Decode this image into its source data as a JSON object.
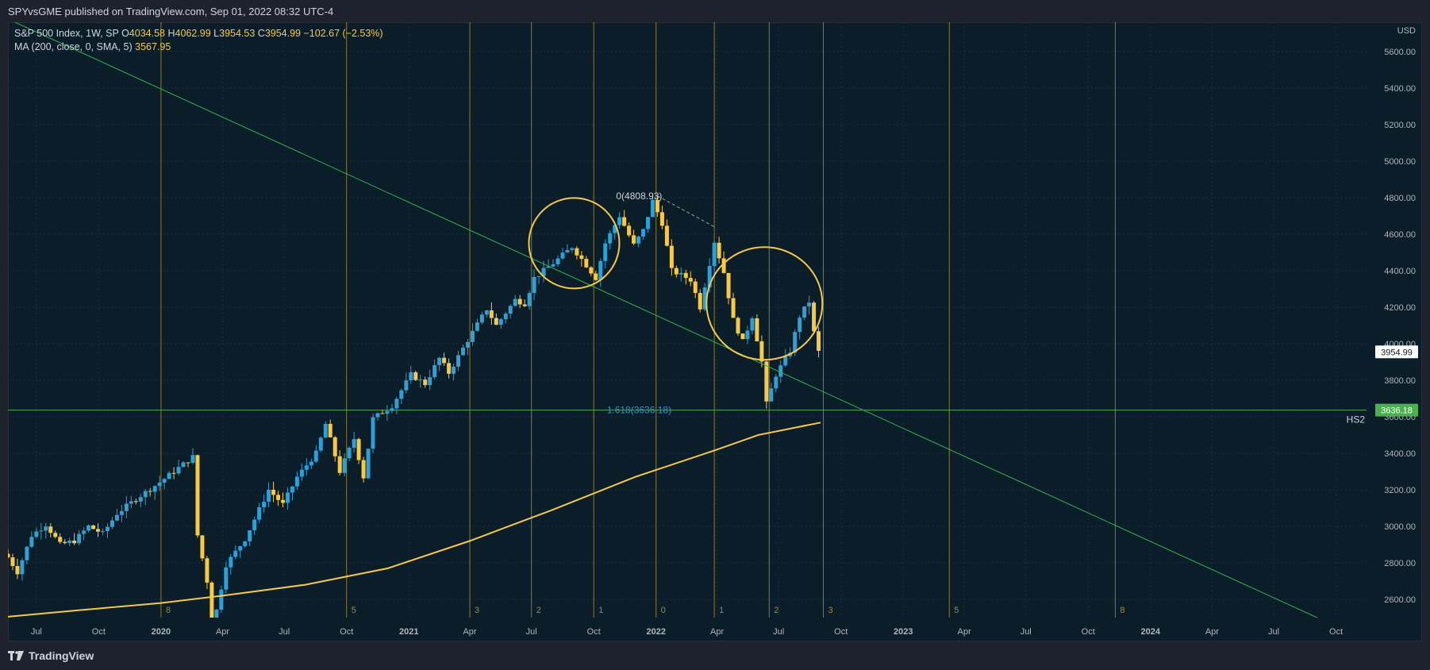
{
  "header": {
    "publish_line": "SPYvsGME published on TradingView.com, Sep 01, 2022 08:32 UTC-4"
  },
  "legend": {
    "symbol": "S&P 500 Index, 1W, SP",
    "open_label": "O",
    "open": "4034.58",
    "high_label": "H",
    "high": "4062.99",
    "low_label": "L",
    "low": "3954.53",
    "close_label": "C",
    "close": "3954.99",
    "change": "−102.67 (−2.53%)",
    "ma_label": "MA (200, close, 0, SMA, 5)",
    "ma_value": "3567.95"
  },
  "footer": {
    "brand": "TradingView"
  },
  "colors": {
    "up": "#2ea0d6",
    "down": "#f7c948",
    "ma": "#f7c948",
    "trend": "#36b24a",
    "hline": "#4caf50",
    "vline": "#8c7a2e",
    "grid": "#1b3040"
  },
  "chart_data": {
    "type": "candlestick",
    "currency": "USD",
    "y_ticks": [
      2600,
      2800,
      3000,
      3200,
      3400,
      3600,
      3800,
      4000,
      4200,
      4400,
      4600,
      4800,
      5000,
      5200,
      5400,
      5600
    ],
    "ylim": [
      2500,
      5760
    ],
    "x_range": [
      "2019-05-20",
      "2024-11-15"
    ],
    "x_ticks": [
      {
        "date": "2019-07-01",
        "label": "Jul",
        "bold": false
      },
      {
        "date": "2019-10-01",
        "label": "Oct",
        "bold": false
      },
      {
        "date": "2020-01-01",
        "label": "2020",
        "bold": true
      },
      {
        "date": "2020-04-01",
        "label": "Apr",
        "bold": false
      },
      {
        "date": "2020-07-01",
        "label": "Jul",
        "bold": false
      },
      {
        "date": "2020-10-01",
        "label": "Oct",
        "bold": false
      },
      {
        "date": "2021-01-01",
        "label": "2021",
        "bold": true
      },
      {
        "date": "2021-04-01",
        "label": "Apr",
        "bold": false
      },
      {
        "date": "2021-07-01",
        "label": "Jul",
        "bold": false
      },
      {
        "date": "2021-10-01",
        "label": "Oct",
        "bold": false
      },
      {
        "date": "2022-01-01",
        "label": "2022",
        "bold": true
      },
      {
        "date": "2022-04-01",
        "label": "Apr",
        "bold": false
      },
      {
        "date": "2022-07-01",
        "label": "Jul",
        "bold": false
      },
      {
        "date": "2022-10-01",
        "label": "Oct",
        "bold": false
      },
      {
        "date": "2023-01-01",
        "label": "2023",
        "bold": true
      },
      {
        "date": "2023-04-01",
        "label": "Apr",
        "bold": false
      },
      {
        "date": "2023-07-01",
        "label": "Jul",
        "bold": false
      },
      {
        "date": "2023-10-01",
        "label": "Oct",
        "bold": false
      },
      {
        "date": "2024-01-01",
        "label": "2024",
        "bold": true
      },
      {
        "date": "2024-04-01",
        "label": "Apr",
        "bold": false
      },
      {
        "date": "2024-07-01",
        "label": "Jul",
        "bold": false
      },
      {
        "date": "2024-10-01",
        "label": "Oct",
        "bold": false
      }
    ],
    "weekly_close_anchors": [
      [
        "2019-05-20",
        2830
      ],
      [
        "2019-06-03",
        2750
      ],
      [
        "2019-06-24",
        2950
      ],
      [
        "2019-07-15",
        3010
      ],
      [
        "2019-08-05",
        2900
      ],
      [
        "2019-08-26",
        2920
      ],
      [
        "2019-09-16",
        3000
      ],
      [
        "2019-10-07",
        2960
      ],
      [
        "2019-10-28",
        3070
      ],
      [
        "2019-11-25",
        3150
      ],
      [
        "2019-12-30",
        3240
      ],
      [
        "2020-01-20",
        3300
      ],
      [
        "2020-02-17",
        3380
      ],
      [
        "2020-02-24",
        2950
      ],
      [
        "2020-03-09",
        2700
      ],
      [
        "2020-03-16",
        2300
      ],
      [
        "2020-03-23",
        2540
      ],
      [
        "2020-04-06",
        2790
      ],
      [
        "2020-05-04",
        2930
      ],
      [
        "2020-06-08",
        3200
      ],
      [
        "2020-06-29",
        3120
      ],
      [
        "2020-07-20",
        3270
      ],
      [
        "2020-08-17",
        3400
      ],
      [
        "2020-08-31",
        3560
      ],
      [
        "2020-09-21",
        3300
      ],
      [
        "2020-10-12",
        3480
      ],
      [
        "2020-10-26",
        3270
      ],
      [
        "2020-11-09",
        3590
      ],
      [
        "2020-12-07",
        3660
      ],
      [
        "2021-01-04",
        3830
      ],
      [
        "2021-01-25",
        3780
      ],
      [
        "2021-02-15",
        3920
      ],
      [
        "2021-03-01",
        3840
      ],
      [
        "2021-03-29",
        4020
      ],
      [
        "2021-04-26",
        4190
      ],
      [
        "2021-05-10",
        4100
      ],
      [
        "2021-06-07",
        4240
      ],
      [
        "2021-06-21",
        4220
      ],
      [
        "2021-07-05",
        4360
      ],
      [
        "2021-08-02",
        4440
      ],
      [
        "2021-08-30",
        4530
      ],
      [
        "2021-09-20",
        4430
      ],
      [
        "2021-10-04",
        4360
      ],
      [
        "2021-10-18",
        4550
      ],
      [
        "2021-11-08",
        4700
      ],
      [
        "2021-11-29",
        4540
      ],
      [
        "2021-12-13",
        4620
      ],
      [
        "2021-12-27",
        4780
      ],
      [
        "2022-01-10",
        4660
      ],
      [
        "2022-01-24",
        4400
      ],
      [
        "2022-02-21",
        4350
      ],
      [
        "2022-03-07",
        4200
      ],
      [
        "2022-03-28",
        4560
      ],
      [
        "2022-04-11",
        4390
      ],
      [
        "2022-04-25",
        4130
      ],
      [
        "2022-05-09",
        4010
      ],
      [
        "2022-05-23",
        4150
      ],
      [
        "2022-06-06",
        3900
      ],
      [
        "2022-06-13",
        3670
      ],
      [
        "2022-06-27",
        3830
      ],
      [
        "2022-07-18",
        3960
      ],
      [
        "2022-08-01",
        4150
      ],
      [
        "2022-08-15",
        4230
      ],
      [
        "2022-08-22",
        4060
      ],
      [
        "2022-08-29",
        3955
      ]
    ],
    "ma200": [
      [
        "2019-05-20",
        2505
      ],
      [
        "2019-09-01",
        2540
      ],
      [
        "2020-01-01",
        2580
      ],
      [
        "2020-04-01",
        2620
      ],
      [
        "2020-08-01",
        2680
      ],
      [
        "2020-12-01",
        2770
      ],
      [
        "2021-04-01",
        2920
      ],
      [
        "2021-08-01",
        3090
      ],
      [
        "2021-12-01",
        3270
      ],
      [
        "2022-04-01",
        3420
      ],
      [
        "2022-06-01",
        3500
      ],
      [
        "2022-09-01",
        3568
      ]
    ],
    "trendline": {
      "from": [
        "2019-05-01",
        5810
      ],
      "to": [
        "2024-11-01",
        2400
      ]
    },
    "horizontal_line": {
      "price": 3636.18,
      "label": "3636.18",
      "fib_label": "1.618(3636.18)",
      "fib_date": "2021-12-07",
      "tag": "HS2"
    },
    "last_price": {
      "price": 3954.99,
      "label": "3954.99"
    },
    "peak_label": {
      "text": "0(4808.93)",
      "date": "2021-12-07",
      "price": 4808.93
    },
    "peak_guide": {
      "from": [
        "2022-01-03",
        4808.93
      ],
      "to": [
        "2022-03-28",
        4640
      ]
    },
    "cycle_lines": [
      {
        "date": "2020-01-01",
        "label": "8"
      },
      {
        "date": "2020-10-01",
        "label": "5"
      },
      {
        "date": "2021-04-01",
        "label": "3"
      },
      {
        "date": "2021-07-01",
        "label": "2"
      },
      {
        "date": "2021-10-01",
        "label": "1"
      },
      {
        "date": "2022-01-01",
        "label": "0"
      },
      {
        "date": "2022-03-28",
        "label": "1"
      },
      {
        "date": "2022-06-17",
        "label": "2"
      },
      {
        "date": "2022-09-05",
        "label": "3"
      },
      {
        "date": "2023-03-10",
        "label": "5"
      },
      {
        "date": "2023-11-10",
        "label": "8"
      }
    ],
    "circles": [
      {
        "date": "2021-09-02",
        "price": 4550,
        "rx": 57,
        "ry": 57
      },
      {
        "date": "2022-06-10",
        "price": 4220,
        "rx": 73,
        "ry": 71
      }
    ]
  }
}
